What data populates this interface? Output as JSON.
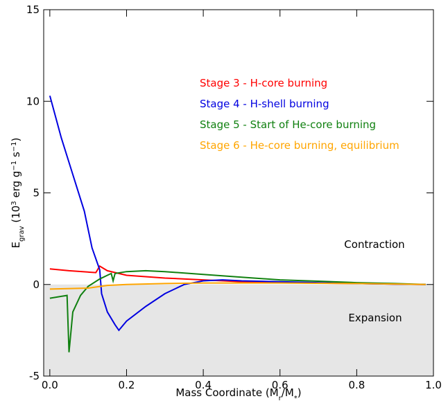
{
  "chart_data": {
    "type": "line",
    "xlabel_parts": [
      {
        "text": "Mass Coordinate (M",
        "shift": "normal"
      },
      {
        "text": "r",
        "shift": "sub"
      },
      {
        "text": "/M",
        "shift": "normal"
      },
      {
        "text": "*",
        "shift": "sub"
      },
      {
        "text": ")",
        "shift": "normal"
      }
    ],
    "ylabel_parts": [
      {
        "text": "E",
        "shift": "normal"
      },
      {
        "text": "grav",
        "shift": "sub"
      },
      {
        "text": " (10",
        "shift": "normal"
      },
      {
        "text": "3",
        "shift": "super"
      },
      {
        "text": " erg g",
        "shift": "normal"
      },
      {
        "text": "−1",
        "shift": "super"
      },
      {
        "text": " s",
        "shift": "normal"
      },
      {
        "text": "−1",
        "shift": "super"
      },
      {
        "text": ")",
        "shift": "normal"
      }
    ],
    "xlim": [
      -0.016,
      1.0
    ],
    "ylim": [
      -5,
      15
    ],
    "xticks": [
      {
        "value": 0,
        "label": "0.0"
      },
      0.2,
      0.4,
      0.6,
      0.8,
      {
        "value": 1,
        "label": "1.0"
      }
    ],
    "yticks": [
      -5,
      0,
      5,
      10,
      15
    ],
    "shade_below": 0,
    "shade_color": "#e6e6e6",
    "annotations": [
      "Contraction",
      "Expansion"
    ],
    "series": [
      {
        "name": "Stage 3 - H-core burning",
        "color": "#ff0000",
        "x": [
          0,
          0.05,
          0.12,
          0.13,
          0.15,
          0.2,
          0.3,
          0.4,
          0.5,
          0.6,
          0.7,
          0.8,
          0.9,
          0.98
        ],
        "values": [
          0.85,
          0.75,
          0.65,
          1.0,
          0.75,
          0.5,
          0.35,
          0.25,
          0.15,
          0.1,
          0.07,
          0.05,
          0.02,
          0.0
        ]
      },
      {
        "name": "Stage 4 - H-shell burning",
        "color": "#0000e0",
        "x": [
          0,
          0.03,
          0.06,
          0.09,
          0.11,
          0.13,
          0.135,
          0.15,
          0.17,
          0.18,
          0.2,
          0.25,
          0.3,
          0.35,
          0.4,
          0.45,
          0.5,
          0.6,
          0.7,
          0.8,
          0.9,
          0.98
        ],
        "values": [
          10.3,
          8,
          6,
          4,
          2,
          0.8,
          -0.5,
          -1.5,
          -2.2,
          -2.5,
          -2,
          -1.2,
          -0.5,
          0.0,
          0.2,
          0.25,
          0.2,
          0.15,
          0.1,
          0.05,
          0.02,
          0.0
        ]
      },
      {
        "name": "Stage 5 - Start of He-core burning",
        "color": "#108010",
        "x": [
          0,
          0.03,
          0.045,
          0.05,
          0.06,
          0.08,
          0.1,
          0.13,
          0.15,
          0.16,
          0.165,
          0.17,
          0.2,
          0.25,
          0.3,
          0.4,
          0.5,
          0.6,
          0.7,
          0.8,
          0.9,
          0.98
        ],
        "values": [
          -0.75,
          -0.65,
          -0.6,
          -3.7,
          -1.5,
          -0.6,
          -0.1,
          0.3,
          0.5,
          0.6,
          0.2,
          0.6,
          0.7,
          0.75,
          0.7,
          0.55,
          0.4,
          0.25,
          0.18,
          0.1,
          0.05,
          0.0
        ]
      },
      {
        "name": "Stage 6 - He-core burning, equilibrium",
        "color": "#ffa500",
        "x": [
          0,
          0.1,
          0.15,
          0.2,
          0.3,
          0.4,
          0.6,
          0.8,
          0.98
        ],
        "values": [
          -0.25,
          -0.2,
          -0.05,
          0.0,
          0.05,
          0.08,
          0.08,
          0.05,
          0.0
        ]
      }
    ]
  }
}
